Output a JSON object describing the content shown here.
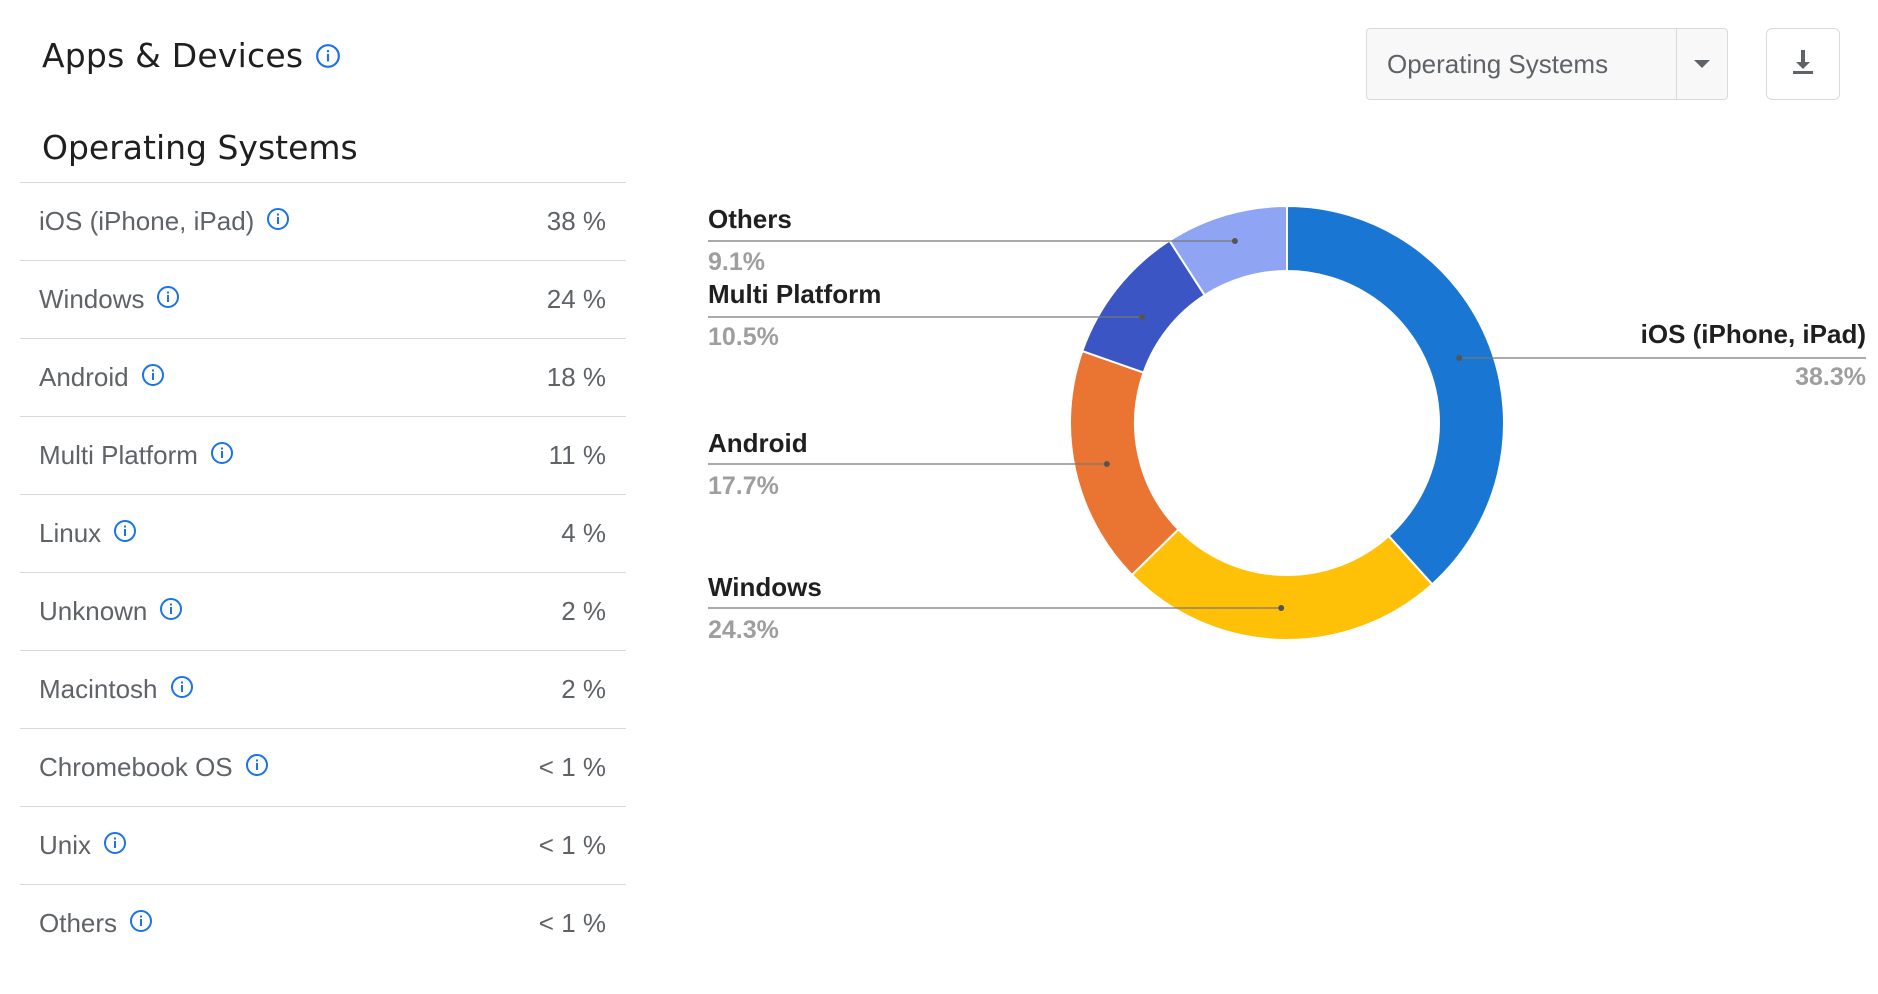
{
  "header": {
    "title": "Apps & Devices",
    "info_icon": "info-icon"
  },
  "section": {
    "title": "Operating Systems"
  },
  "controls": {
    "dropdown": {
      "selected": "Operating Systems",
      "icon": "chevron-down-icon"
    },
    "download": {
      "icon": "download-icon"
    }
  },
  "table": {
    "rows": [
      {
        "name": "iOS (iPhone, iPad)",
        "value": "38 %"
      },
      {
        "name": "Windows",
        "value": "24 %"
      },
      {
        "name": "Android",
        "value": "18 %"
      },
      {
        "name": "Multi Platform",
        "value": "11 %"
      },
      {
        "name": "Linux",
        "value": "4 %"
      },
      {
        "name": "Unknown",
        "value": "2 %"
      },
      {
        "name": "Macintosh",
        "value": "2 %"
      },
      {
        "name": "Chromebook OS",
        "value": "< 1 %"
      },
      {
        "name": "Unix",
        "value": "< 1 %"
      },
      {
        "name": "Others",
        "value": "< 1 %"
      }
    ]
  },
  "colors": {
    "accent": "#1a73e8",
    "text": "#5f6368",
    "title": "#1f1f1f",
    "label_value": "#9e9e9e"
  },
  "chart_data": {
    "type": "pie",
    "donut": true,
    "slices": [
      {
        "name": "iOS (iPhone, iPad)",
        "value": 38.3,
        "label": "38.3%",
        "color": "#1976d2"
      },
      {
        "name": "Windows",
        "value": 24.3,
        "label": "24.3%",
        "color": "#ffc107"
      },
      {
        "name": "Android",
        "value": 17.7,
        "label": "17.7%",
        "color": "#ea7533"
      },
      {
        "name": "Multi Platform",
        "value": 10.5,
        "label": "10.5%",
        "color": "#3c55c5"
      },
      {
        "name": "Others",
        "value": 9.1,
        "label": "9.1%",
        "color": "#8fa5f3"
      }
    ]
  }
}
